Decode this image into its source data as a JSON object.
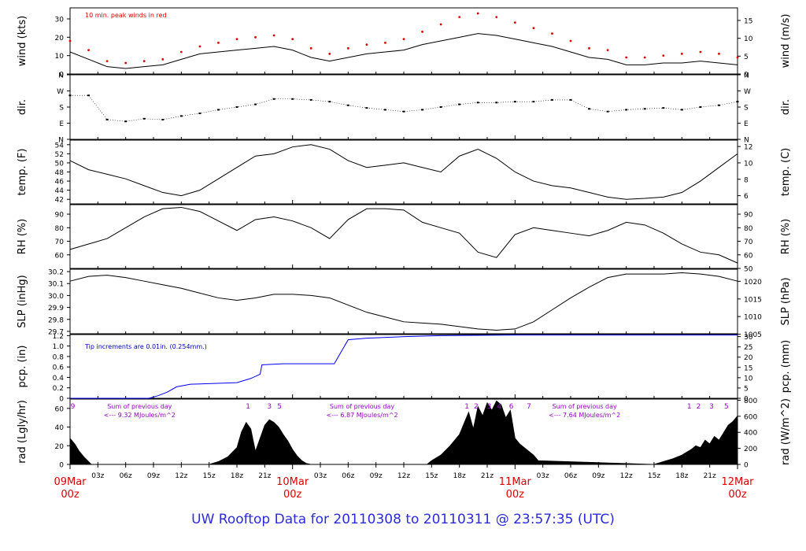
{
  "title": "UW Rooftop Data for 20110308  to  20110311 @ 23:57:35  (UTC)",
  "colors": {
    "title": "#2b2bdc",
    "date_labels": "#dd0000",
    "peak_wind": "#dd0000",
    "precip_line": "#0000ee",
    "precip_note": "#0000cc",
    "rad_notes": "#9900cc",
    "trace": "#000000"
  },
  "chart_data": {
    "type": "line",
    "x_axis": {
      "range_hours": [
        0,
        72
      ],
      "tick_labels": [
        "03z",
        "06z",
        "09z",
        "12z",
        "15z",
        "18z",
        "21z",
        "03z",
        "06z",
        "09z",
        "12z",
        "15z",
        "18z",
        "21z",
        "03z",
        "06z",
        "09z",
        "12z",
        "15z",
        "18z",
        "21z"
      ],
      "tick_hours": [
        3,
        6,
        9,
        12,
        15,
        18,
        21,
        27,
        30,
        33,
        36,
        39,
        42,
        45,
        51,
        54,
        57,
        60,
        63,
        66,
        69
      ],
      "date_labels": [
        {
          "hour": 0,
          "date": "09Mar",
          "time": "00z"
        },
        {
          "hour": 24,
          "date": "10Mar",
          "time": "00z"
        },
        {
          "hour": 48,
          "date": "11Mar",
          "time": "00z"
        },
        {
          "hour": 72,
          "date": "12Mar",
          "time": "00z"
        }
      ]
    },
    "panels": [
      {
        "id": "wind",
        "ylabel_left": "wind (kts)",
        "ylabel_right": "wind (m/s)",
        "ylim": [
          0,
          36
        ],
        "left_ticks": [
          "0",
          "10",
          "20",
          "30"
        ],
        "left_tick_values": [
          0,
          10,
          20,
          30
        ],
        "right_ticks": [
          "0",
          "5",
          "10",
          "15"
        ],
        "right_tick_values": [
          0,
          9.72,
          19.44,
          29.16
        ],
        "annotation": "10 min. peak winds in red",
        "series": [
          {
            "name": "wind speed",
            "x": [
              0,
              2,
              4,
              6,
              8,
              10,
              12,
              14,
              16,
              18,
              20,
              22,
              24,
              26,
              28,
              30,
              32,
              34,
              36,
              38,
              40,
              42,
              44,
              46,
              48,
              50,
              52,
              54,
              56,
              58,
              60,
              62,
              64,
              66,
              68,
              70,
              72
            ],
            "y": [
              12,
              8,
              4,
              3,
              4,
              5,
              8,
              11,
              12,
              13,
              14,
              15,
              13,
              9,
              7,
              9,
              11,
              12,
              13,
              16,
              18,
              20,
              22,
              21,
              19,
              17,
              15,
              12,
              9,
              8,
              5,
              5,
              6,
              6,
              7,
              6,
              5
            ]
          },
          {
            "name": "10 min. peak winds",
            "x": [
              0,
              2,
              4,
              6,
              8,
              10,
              12,
              14,
              16,
              18,
              20,
              22,
              24,
              26,
              28,
              30,
              32,
              34,
              36,
              38,
              40,
              42,
              44,
              46,
              48,
              50,
              52,
              54,
              56,
              58,
              60,
              62,
              64,
              66,
              68,
              70,
              72
            ],
            "y": [
              18,
              13,
              7,
              6,
              7,
              8,
              12,
              15,
              17,
              19,
              20,
              21,
              19,
              14,
              11,
              14,
              16,
              17,
              19,
              23,
              27,
              31,
              33,
              31,
              28,
              25,
              22,
              18,
              14,
              13,
              9,
              9,
              10,
              11,
              12,
              11,
              9
            ]
          }
        ]
      },
      {
        "id": "dir",
        "ylabel_left": "dir.",
        "ylabel_right": "dir.",
        "ylim": [
          0,
          360
        ],
        "left_ticks": [
          "N",
          "E",
          "S",
          "W",
          "N"
        ],
        "right_ticks": [
          "N",
          "E",
          "S",
          "W",
          "N"
        ],
        "tick_values": [
          0,
          90,
          180,
          270,
          360
        ],
        "series": [
          {
            "name": "wind direction",
            "x": [
              0,
              2,
              4,
              6,
              8,
              10,
              12,
              14,
              16,
              18,
              20,
              22,
              24,
              26,
              28,
              30,
              32,
              34,
              36,
              38,
              40,
              42,
              44,
              46,
              48,
              50,
              52,
              54,
              56,
              58,
              60,
              62,
              64,
              66,
              68,
              70,
              72
            ],
            "y": [
              245,
              245,
              110,
              100,
              115,
              110,
              130,
              145,
              165,
              180,
              195,
              225,
              225,
              220,
              210,
              190,
              175,
              165,
              155,
              165,
              180,
              195,
              205,
              205,
              210,
              210,
              220,
              220,
              170,
              155,
              165,
              170,
              175,
              165,
              180,
              190,
              210
            ]
          }
        ]
      },
      {
        "id": "temp",
        "ylabel_left": "temp. (F)",
        "ylabel_right": "temp. (C)",
        "ylim": [
          41,
          55
        ],
        "left_ticks": [
          "42",
          "44",
          "46",
          "48",
          "50",
          "52",
          "54"
        ],
        "left_tick_values": [
          42,
          44,
          46,
          48,
          50,
          52,
          54
        ],
        "right_ticks": [
          "6",
          "8",
          "10",
          "12"
        ],
        "right_tick_values": [
          42.8,
          46.4,
          50,
          53.6
        ],
        "series": [
          {
            "name": "temperature",
            "x": [
              0,
              2,
              4,
              6,
              8,
              10,
              12,
              14,
              16,
              18,
              20,
              22,
              24,
              26,
              28,
              30,
              32,
              34,
              36,
              38,
              40,
              42,
              44,
              46,
              48,
              50,
              52,
              54,
              56,
              58,
              60,
              62,
              64,
              66,
              68,
              70,
              72
            ],
            "y": [
              50.5,
              48.5,
              47.5,
              46.5,
              45,
              43.5,
              42.8,
              44,
              46.5,
              49,
              51.5,
              52,
              53.5,
              54,
              53,
              50.5,
              49,
              49.5,
              50,
              49,
              48,
              51.5,
              53,
              51,
              48,
              46,
              45,
              44.5,
              43.5,
              42.5,
              42,
              42.2,
              42.5,
              43.5,
              46,
              49,
              52
            ]
          }
        ]
      },
      {
        "id": "rh",
        "ylabel_left": "RH (%)",
        "ylabel_right": "RH (%)",
        "ylim": [
          50,
          97
        ],
        "left_ticks": [
          "60",
          "70",
          "80",
          "90"
        ],
        "left_tick_values": [
          60,
          70,
          80,
          90
        ],
        "right_ticks": [
          "50",
          "60",
          "70",
          "80",
          "90"
        ],
        "right_tick_values": [
          50,
          60,
          70,
          80,
          90
        ],
        "series": [
          {
            "name": "relative humidity",
            "x": [
              0,
              2,
              4,
              6,
              8,
              10,
              12,
              14,
              16,
              18,
              20,
              22,
              24,
              26,
              28,
              30,
              32,
              34,
              36,
              38,
              40,
              42,
              44,
              46,
              48,
              50,
              52,
              54,
              56,
              58,
              60,
              62,
              64,
              66,
              68,
              70,
              72
            ],
            "y": [
              64,
              68,
              72,
              80,
              88,
              94,
              95,
              92,
              85,
              78,
              86,
              88,
              85,
              80,
              72,
              86,
              94,
              94,
              93,
              84,
              80,
              76,
              62,
              58,
              75,
              80,
              78,
              76,
              74,
              78,
              84,
              82,
              76,
              68,
              62,
              60,
              54
            ]
          }
        ]
      },
      {
        "id": "slp",
        "ylabel_left": "SLP (inHg)",
        "ylabel_right": "SLP (hPa)",
        "ylim": [
          29.68,
          30.22
        ],
        "left_ticks": [
          "29.7",
          "29.8",
          "29.9",
          "30.0",
          "30.1",
          "30.2"
        ],
        "left_tick_values": [
          29.7,
          29.8,
          29.9,
          30.0,
          30.1,
          30.2
        ],
        "right_ticks": [
          "1005",
          "1010",
          "1015",
          "1020"
        ],
        "right_tick_values": [
          29.676,
          29.824,
          29.971,
          30.119
        ],
        "series": [
          {
            "name": "sea level pressure",
            "x": [
              0,
              2,
              4,
              6,
              8,
              10,
              12,
              14,
              16,
              18,
              20,
              22,
              24,
              26,
              28,
              30,
              32,
              34,
              36,
              38,
              40,
              42,
              44,
              46,
              48,
              50,
              52,
              54,
              56,
              58,
              60,
              62,
              64,
              66,
              68,
              70,
              72
            ],
            "y": [
              30.12,
              30.16,
              30.17,
              30.15,
              30.12,
              30.09,
              30.06,
              30.02,
              29.98,
              29.96,
              29.98,
              30.01,
              30.01,
              30.0,
              29.98,
              29.92,
              29.86,
              29.82,
              29.78,
              29.77,
              29.76,
              29.74,
              29.72,
              29.71,
              29.72,
              29.78,
              29.88,
              29.98,
              30.07,
              30.15,
              30.18,
              30.18,
              30.18,
              30.19,
              30.18,
              30.16,
              30.12
            ]
          }
        ]
      },
      {
        "id": "pcp",
        "ylabel_left": "pcp. (in)",
        "ylabel_right": "pcp. (mm)",
        "ylim": [
          0,
          1.22
        ],
        "left_ticks": [
          "0",
          "0.2",
          "0.4",
          "0.6",
          "0.8",
          "1.0",
          "1.2"
        ],
        "left_tick_values": [
          0,
          0.2,
          0.4,
          0.6,
          0.8,
          1.0,
          1.2
        ],
        "right_ticks": [
          "0",
          "5",
          "10",
          "15",
          "20",
          "25",
          "30"
        ],
        "right_tick_values": [
          0,
          0.197,
          0.394,
          0.591,
          0.787,
          0.984,
          1.181
        ],
        "annotation": "Tip increments are 0.01in. (0.254mm.)",
        "series": [
          {
            "name": "cumulative precipitation",
            "x": [
              0,
              8.5,
              9.5,
              10.5,
              11.5,
              13,
              15,
              18,
              19.5,
              20.5,
              20.7,
              23,
              27,
              28.5,
              30,
              32,
              36,
              40,
              48,
              72
            ],
            "y": [
              0,
              0,
              0.05,
              0.12,
              0.22,
              0.27,
              0.28,
              0.3,
              0.38,
              0.46,
              0.64,
              0.66,
              0.66,
              0.66,
              1.12,
              1.15,
              1.18,
              1.2,
              1.21,
              1.21
            ]
          }
        ]
      },
      {
        "id": "rad",
        "type": "area",
        "ylabel_left": "rad (Lgly/hr)",
        "ylabel_right": "rad (W/m^2)",
        "ylim": [
          0,
          70
        ],
        "left_ticks": [
          "0",
          "20",
          "40",
          "60"
        ],
        "left_tick_values": [
          0,
          20,
          40,
          60
        ],
        "right_ticks": [
          "0",
          "200",
          "400",
          "600",
          "800"
        ],
        "right_tick_values": [
          0,
          17.2,
          34.4,
          51.6,
          68.8
        ],
        "hour_markers": [
          {
            "hour": 0.3,
            "label": "9"
          },
          {
            "hour": 19.2,
            "label": "1"
          },
          {
            "hour": 21.5,
            "label": "3"
          },
          {
            "hour": 22.6,
            "label": "5"
          },
          {
            "hour": 42.8,
            "label": "1"
          },
          {
            "hour": 43.8,
            "label": "2"
          },
          {
            "hour": 45.2,
            "label": "3"
          },
          {
            "hour": 46.3,
            "label": "4"
          },
          {
            "hour": 47.6,
            "label": "6"
          },
          {
            "hour": 49.5,
            "label": "7"
          },
          {
            "hour": 66.8,
            "label": "1"
          },
          {
            "hour": 67.8,
            "label": "2"
          },
          {
            "hour": 69.2,
            "label": "3"
          },
          {
            "hour": 70.8,
            "label": "5"
          }
        ],
        "notes": [
          {
            "hour": 7.5,
            "line1": "Sum of previous day",
            "line2": "<--- 9.32 MJoules/m^2"
          },
          {
            "hour": 31.5,
            "line1": "Sum of previous day",
            "line2": "<--- 6.87 MJoules/m^2"
          },
          {
            "hour": 55.5,
            "line1": "Sum of previous day",
            "line2": "<--- 7.64 MJoules/m^2"
          }
        ],
        "series": [
          {
            "name": "solar radiation",
            "x": [
              0,
              0.5,
              1,
              1.5,
              2,
              2.3,
              15,
              16,
              17,
              18,
              18.5,
              19,
              19.5,
              20,
              20.5,
              21,
              21.5,
              22,
              22.5,
              23,
              23.5,
              24,
              24.5,
              25,
              25.5,
              26,
              38.5,
              39,
              40,
              41,
              42,
              42.5,
              43,
              43.5,
              44,
              44.5,
              45,
              45.5,
              46,
              46.5,
              47,
              47.5,
              48,
              48.5,
              49,
              49.5,
              50,
              50.5,
              63,
              64,
              65,
              66,
              67,
              67.5,
              68,
              68.5,
              69,
              69.5,
              70,
              70.5,
              71,
              71.5,
              72
            ],
            "y": [
              28,
              22,
              14,
              8,
              3,
              0,
              0,
              3,
              8,
              18,
              35,
              45,
              38,
              14,
              28,
              42,
              48,
              45,
              40,
              32,
              25,
              16,
              9,
              4,
              1,
              0,
              0,
              4,
              10,
              20,
              32,
              44,
              56,
              38,
              62,
              52,
              66,
              58,
              68,
              64,
              50,
              58,
              28,
              22,
              18,
              14,
              10,
              4,
              0,
              3,
              6,
              10,
              16,
              20,
              18,
              26,
              22,
              30,
              26,
              34,
              42,
              46,
              52
            ]
          }
        ]
      }
    ]
  }
}
